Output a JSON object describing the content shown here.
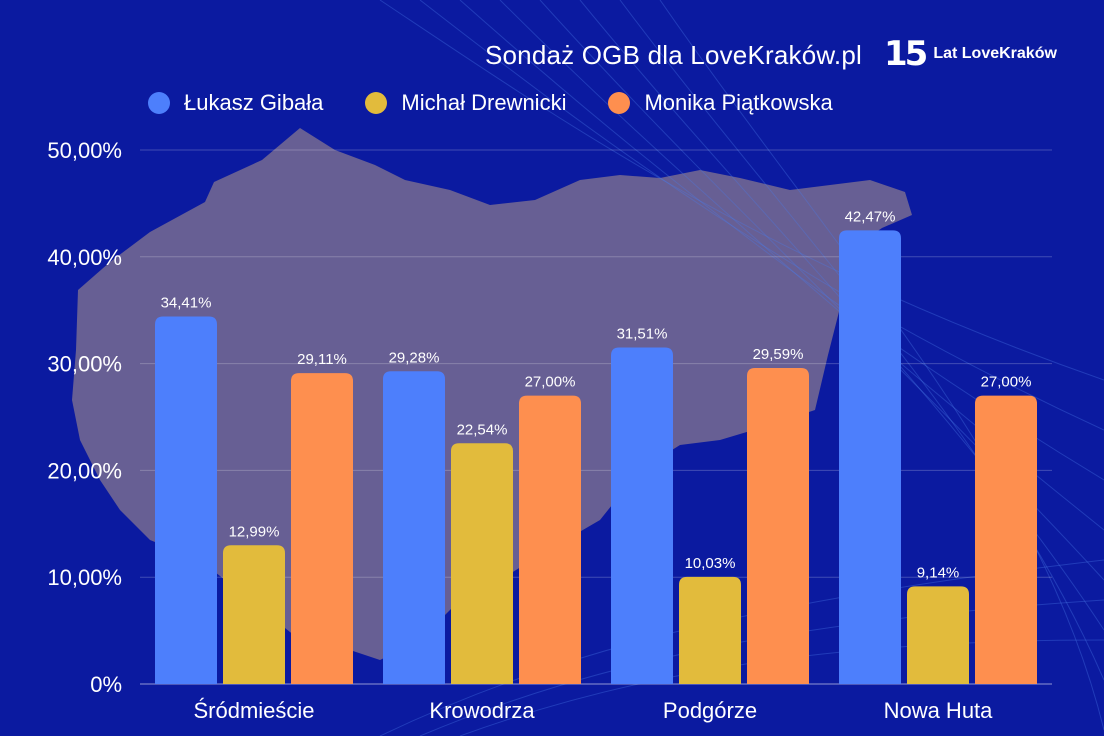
{
  "header": {
    "title": "Sondaż OGB dla LoveKraków.pl",
    "logo_number": "15",
    "logo_text": "Lat LoveKraków"
  },
  "colors": {
    "background": "#0b1aa0",
    "series": [
      "#4d7ffc",
      "#e2bb3c",
      "#fe8f4f"
    ]
  },
  "chart_data": {
    "type": "bar",
    "title": "Sondaż OGB dla LoveKraków.pl",
    "categories": [
      "Śródmieście",
      "Krowodrza",
      "Podgórze",
      "Nowa Huta"
    ],
    "series": [
      {
        "name": "Łukasz Gibała",
        "values": [
          34.41,
          29.28,
          31.51,
          42.47
        ],
        "labels": [
          "34,41%",
          "29,28%",
          "31,51%",
          "42,47%"
        ]
      },
      {
        "name": "Michał Drewnicki",
        "values": [
          12.99,
          22.54,
          10.03,
          9.14
        ],
        "labels": [
          "12,99%",
          "22,54%",
          "10,03%",
          "9,14%"
        ]
      },
      {
        "name": "Monika Piątkowska",
        "values": [
          29.11,
          27.0,
          29.59,
          27.0
        ],
        "labels": [
          "29,11%",
          "27,00%",
          "29,59%",
          "27,00%"
        ]
      }
    ],
    "ylim": [
      0,
      50
    ],
    "yticks": [
      0,
      10,
      20,
      30,
      40,
      50
    ],
    "ytick_labels": [
      "0%",
      "10,00%",
      "20,00%",
      "30,00%",
      "40,00%",
      "50,00%"
    ],
    "xlabel": "",
    "ylabel": "",
    "grid": true,
    "legend_position": "top"
  }
}
